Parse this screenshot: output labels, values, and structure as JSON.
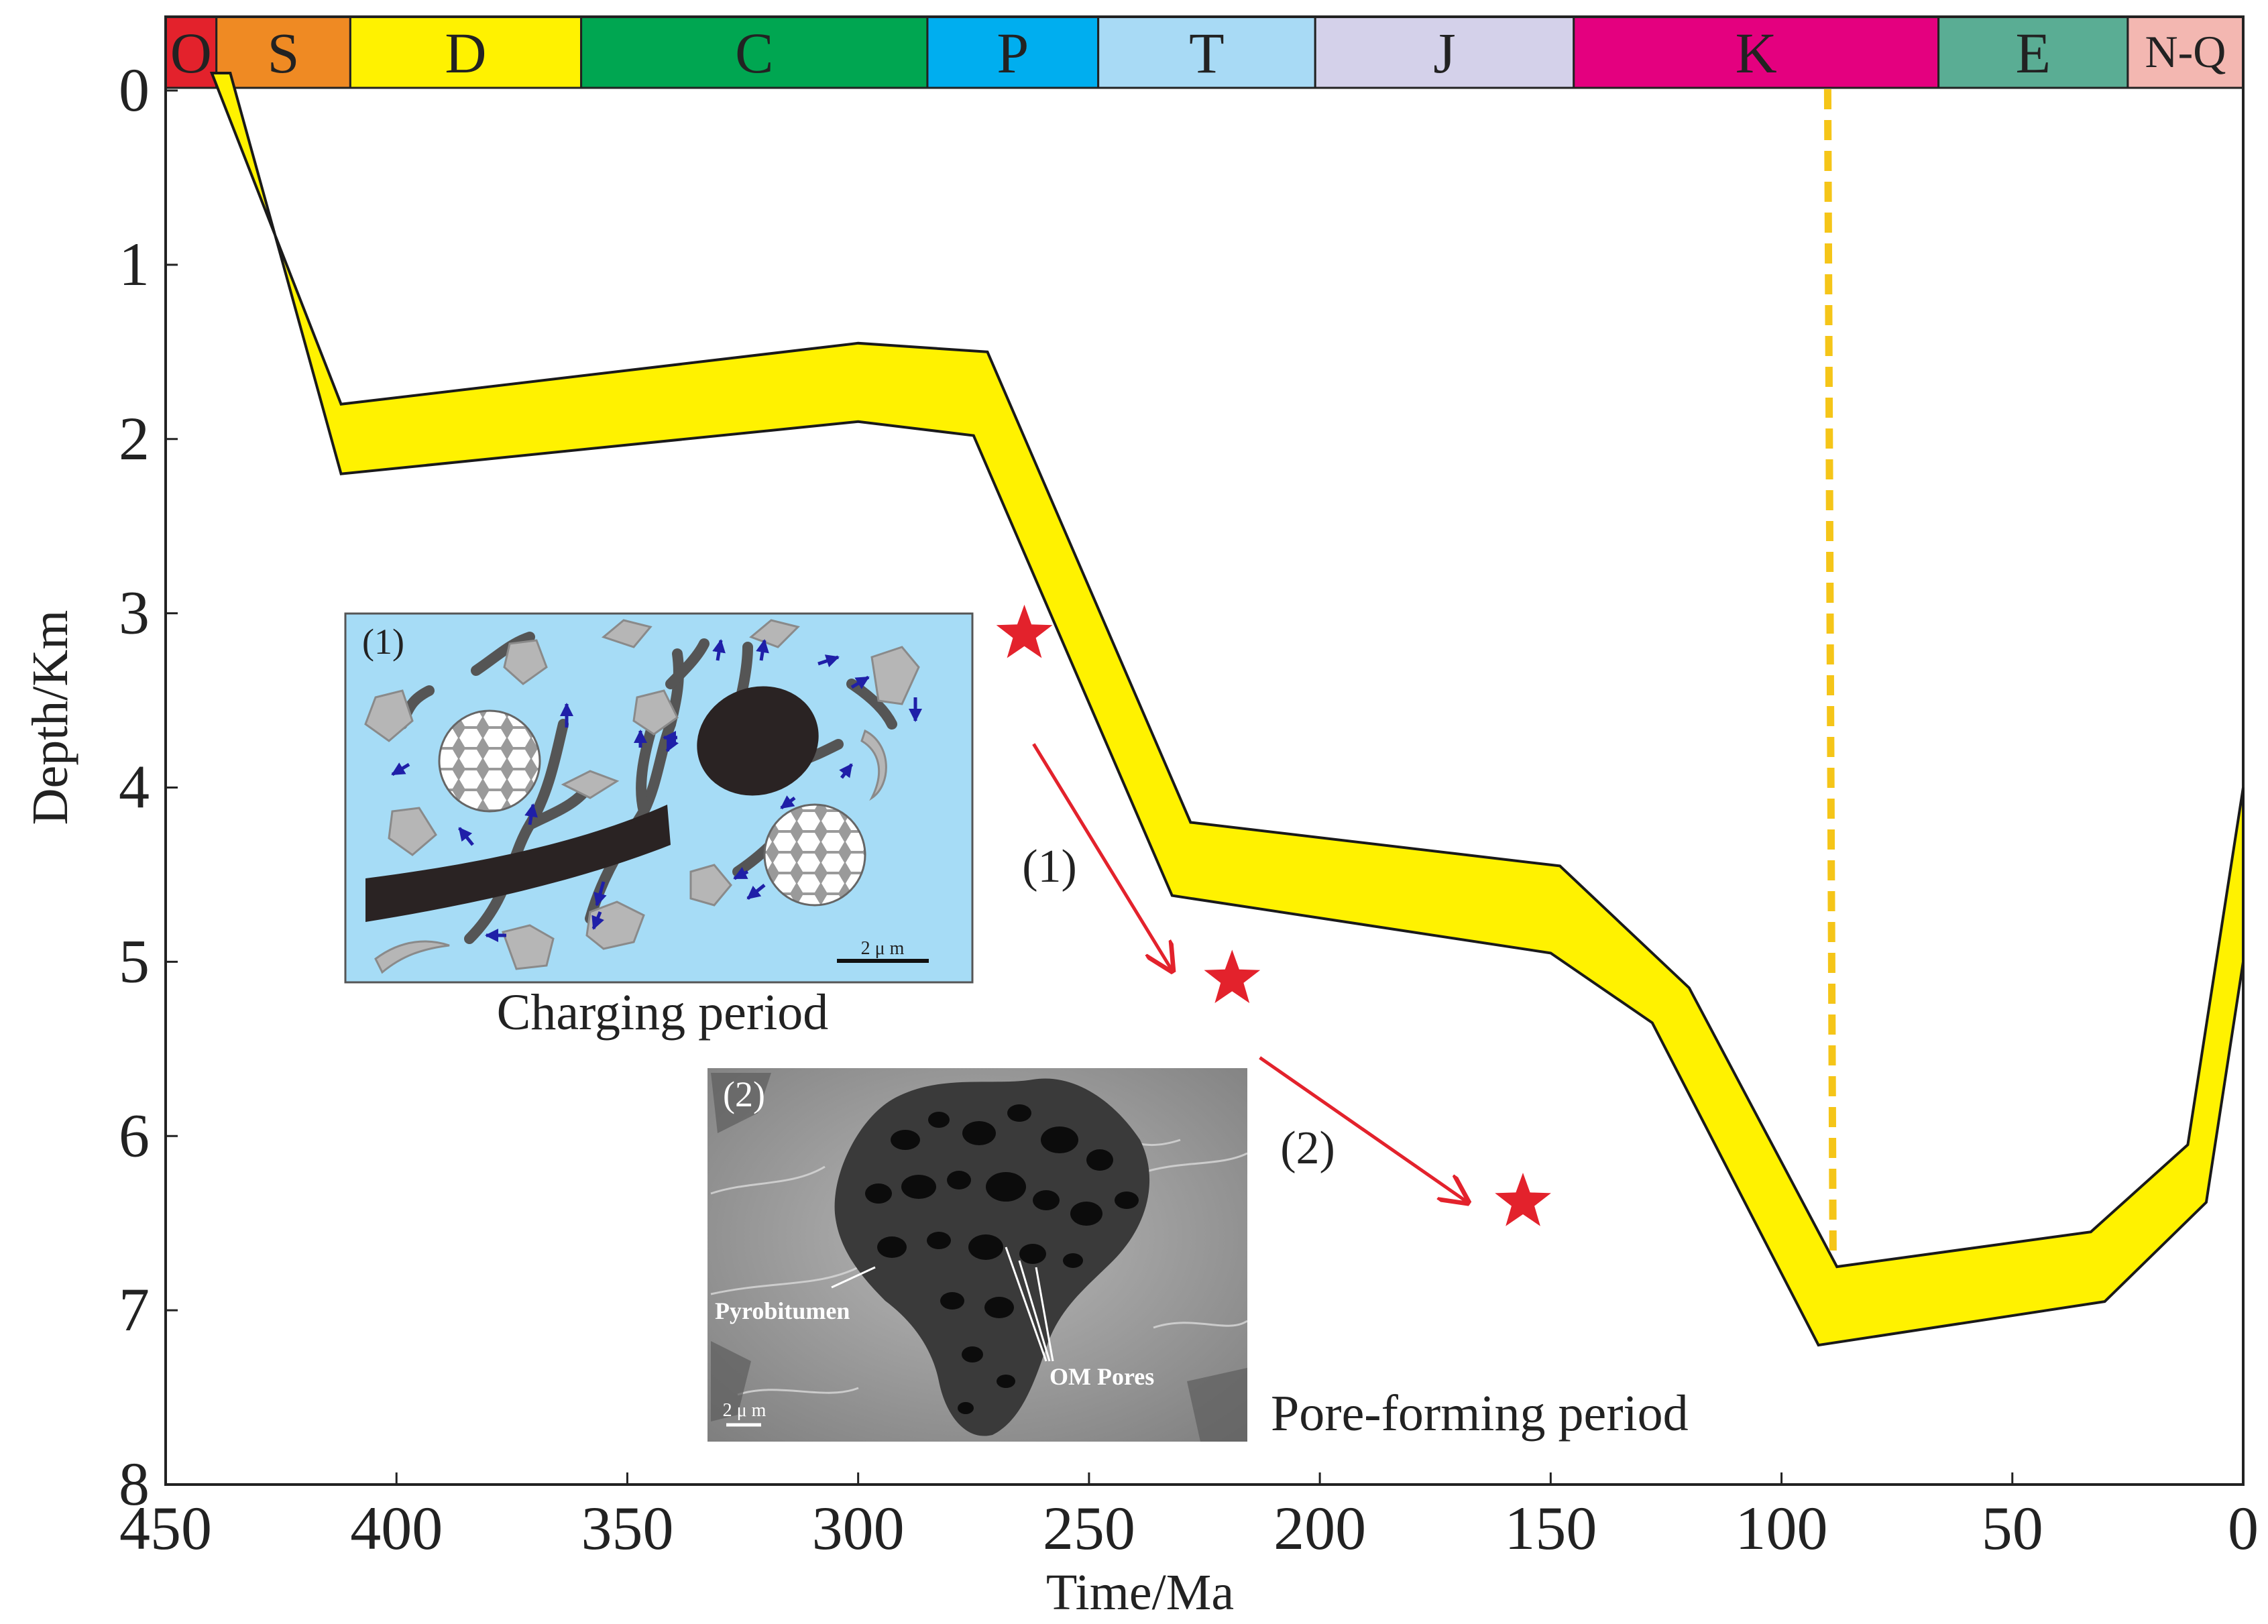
{
  "chart_data": {
    "type": "area",
    "title": "",
    "xlabel": "Time/Ma",
    "ylabel": "Depth/Km",
    "xlim": [
      450,
      0
    ],
    "ylim": [
      0,
      8
    ],
    "x_reversed": true,
    "y_inverted": true,
    "x_ticks": [
      450,
      400,
      350,
      300,
      250,
      200,
      150,
      100,
      50,
      0
    ],
    "y_ticks": [
      0,
      1,
      2,
      3,
      4,
      5,
      6,
      7,
      8
    ],
    "series": [
      {
        "name": "burial band",
        "color": "#fff200",
        "upper": [
          {
            "x": 440,
            "y": -0.1
          },
          {
            "x": 412,
            "y": 1.8
          },
          {
            "x": 300,
            "y": 1.45
          },
          {
            "x": 272,
            "y": 1.5
          },
          {
            "x": 228,
            "y": 4.2
          },
          {
            "x": 148,
            "y": 4.45
          },
          {
            "x": 120,
            "y": 5.15
          },
          {
            "x": 88,
            "y": 6.75
          },
          {
            "x": 33,
            "y": 6.55
          },
          {
            "x": 12,
            "y": 6.05
          },
          {
            "x": 0,
            "y": 4.0
          }
        ],
        "lower": [
          {
            "x": 436,
            "y": -0.1
          },
          {
            "x": 412,
            "y": 2.2
          },
          {
            "x": 300,
            "y": 1.9
          },
          {
            "x": 275,
            "y": 1.98
          },
          {
            "x": 232,
            "y": 4.62
          },
          {
            "x": 150,
            "y": 4.95
          },
          {
            "x": 128,
            "y": 5.35
          },
          {
            "x": 92,
            "y": 7.2
          },
          {
            "x": 30,
            "y": 6.95
          },
          {
            "x": 8,
            "y": 6.38
          },
          {
            "x": 0,
            "y": 5.0
          }
        ]
      }
    ],
    "markers": [
      {
        "name": "star-1",
        "x": 264,
        "y": 3.12,
        "color": "#e3222c"
      },
      {
        "name": "star-2",
        "x": 219,
        "y": 5.1,
        "color": "#e3222c"
      },
      {
        "name": "star-3",
        "x": 156,
        "y": 6.38,
        "color": "#e3222c"
      }
    ],
    "arrows": [
      {
        "from": {
          "x": 262,
          "y": 3.75
        },
        "to": {
          "x": 232,
          "y": 5.05
        },
        "label": "(1)",
        "color": "#e3222c"
      },
      {
        "from": {
          "x": 213,
          "y": 5.55
        },
        "to": {
          "x": 168,
          "y": 6.38
        },
        "label": "(2)",
        "color": "#e3222c"
      }
    ],
    "reference_lines": [
      {
        "x": 90,
        "style": "dashed",
        "color": "#f5c518"
      }
    ],
    "periods": [
      {
        "label": "O",
        "start": 450,
        "end": 439,
        "color": "#e3222c"
      },
      {
        "label": "S",
        "start": 439,
        "end": 410,
        "color": "#ef8a23"
      },
      {
        "label": "D",
        "start": 410,
        "end": 360,
        "color": "#fff200"
      },
      {
        "label": "C",
        "start": 360,
        "end": 285,
        "color": "#00a651"
      },
      {
        "label": "P",
        "start": 285,
        "end": 248,
        "color": "#00aeef"
      },
      {
        "label": "T",
        "start": 248,
        "end": 201,
        "color": "#a8daf5"
      },
      {
        "label": "J",
        "start": 201,
        "end": 145,
        "color": "#d4d1ea"
      },
      {
        "label": "K",
        "start": 145,
        "end": 66,
        "color": "#e4007f"
      },
      {
        "label": "E",
        "start": 66,
        "end": 25,
        "color": "#5aad94"
      },
      {
        "label": "N-Q",
        "start": 25,
        "end": 0,
        "color": "#f3b7b1"
      }
    ]
  },
  "insets": {
    "charging": {
      "number": "(1)",
      "caption": "Charging period",
      "scale_bar": "2 μ m"
    },
    "pore": {
      "number": "(2)",
      "caption": "Pore-forming period",
      "scale_bar": "2 μ m",
      "annot_pyrobitumen": "Pyrobitumen",
      "annot_pores": "OM Pores"
    }
  }
}
